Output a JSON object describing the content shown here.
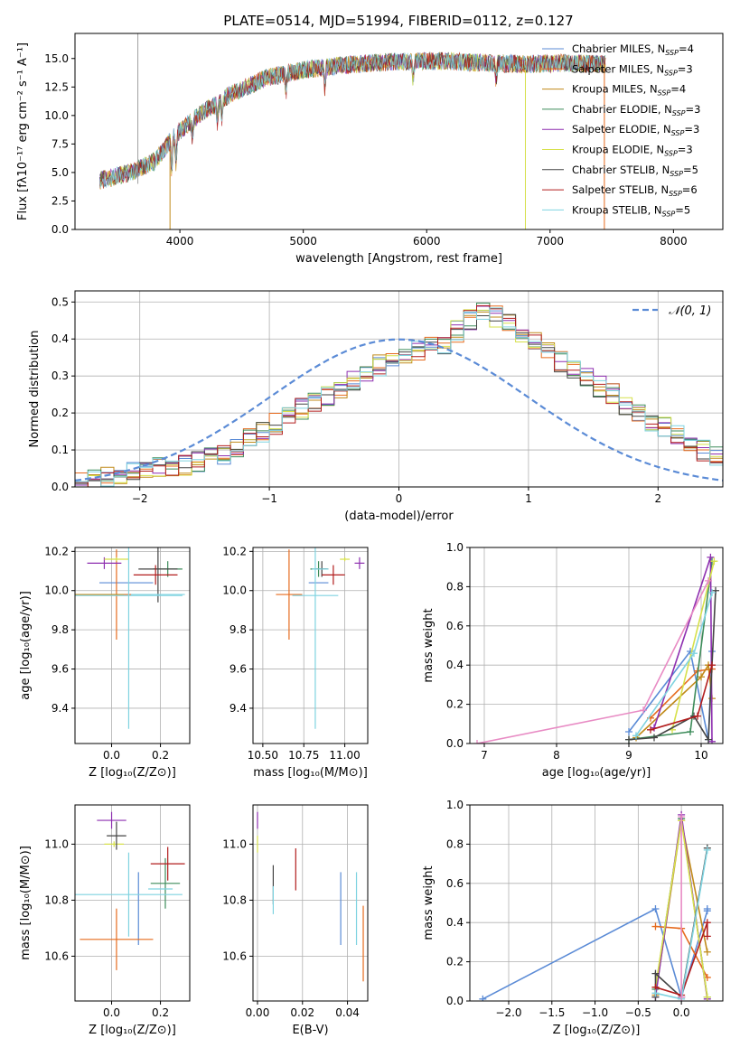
{
  "figure_title": "PLATE=0514, MJD=51994, FIBERID=0112, z=0.127",
  "colors": {
    "grid": "#b0b0b0",
    "normal_curve": "#5b8bd6"
  },
  "series": [
    {
      "legend": "Chabrier MILES, N",
      "legend_sub": "SSP",
      "legend_tail": "=4",
      "n_ssp": 4,
      "color": "#5b8bd6"
    },
    {
      "legend": "Salpeter MILES, N",
      "legend_sub": "SSP",
      "legend_tail": "=3",
      "n_ssp": 3,
      "color": "#e66b1e"
    },
    {
      "legend": "Kroupa MILES, N",
      "legend_sub": "SSP",
      "legend_tail": "=4",
      "n_ssp": 4,
      "color": "#c08a1a"
    },
    {
      "legend": "Chabrier ELODIE, N",
      "legend_sub": "SSP",
      "legend_tail": "=3",
      "n_ssp": 3,
      "color": "#3d8c5a"
    },
    {
      "legend": "Salpeter ELODIE, N",
      "legend_sub": "SSP",
      "legend_tail": "=3",
      "n_ssp": 3,
      "color": "#8e2fb0"
    },
    {
      "legend": "Kroupa ELODIE, N",
      "legend_sub": "SSP",
      "legend_tail": "=3",
      "n_ssp": 3,
      "color": "#d6e04a"
    },
    {
      "legend": "Chabrier STELIB, N",
      "legend_sub": "SSP",
      "legend_tail": "=5",
      "n_ssp": 5,
      "color": "#444444"
    },
    {
      "legend": "Salpeter STELIB, N",
      "legend_sub": "SSP",
      "legend_tail": "=6",
      "n_ssp": 6,
      "color": "#b21d1d"
    },
    {
      "legend": "Kroupa STELIB, N",
      "legend_sub": "SSP",
      "legend_tail": "=5",
      "n_ssp": 5,
      "color": "#7fd3e0"
    }
  ],
  "chart_data": [
    {
      "id": "spectrum",
      "type": "line",
      "title": "PLATE=0514, MJD=51994, FIBERID=0112, z=0.127",
      "xlabel": "wavelength [Angstrom, rest frame]",
      "ylabel": "Flux [fλ10⁻¹⁷ erg cm⁻² s⁻¹ A⁻¹]",
      "xlim": [
        3150,
        8400
      ],
      "ylim": [
        0,
        17.2
      ],
      "xticks": [
        4000,
        5000,
        6000,
        7000,
        8000
      ],
      "yticks": [
        0.0,
        2.5,
        5.0,
        7.5,
        10.0,
        12.5,
        15.0
      ],
      "grid": false,
      "legend_position": "top-right",
      "continuum": [
        [
          3350,
          4.3
        ],
        [
          3600,
          5.0
        ],
        [
          3800,
          6.0
        ],
        [
          3950,
          8.2
        ],
        [
          4150,
          10.0
        ],
        [
          4400,
          11.8
        ],
        [
          4700,
          13.3
        ],
        [
          5000,
          14.0
        ],
        [
          5300,
          14.4
        ],
        [
          5700,
          14.7
        ],
        [
          6100,
          14.8
        ],
        [
          6500,
          14.6
        ],
        [
          6800,
          14.5
        ],
        [
          7100,
          14.6
        ],
        [
          7400,
          14.5
        ]
      ],
      "data_xrange": [
        3350,
        7450
      ]
    },
    {
      "id": "residuals",
      "type": "bar",
      "xlabel": "(data-model)/error",
      "ylabel": "Normed distribution",
      "xlim": [
        -2.5,
        2.5
      ],
      "ylim": [
        0,
        0.53
      ],
      "xticks": [
        -2,
        -1,
        0,
        1,
        2
      ],
      "yticks": [
        0.0,
        0.1,
        0.2,
        0.3,
        0.4,
        0.5
      ],
      "grid": true,
      "legend_label": "𝒩(0, 1)",
      "legend_position": "top-right",
      "bin_width": 0.1,
      "bin_start": -2.5,
      "base_counts": [
        0.02,
        0.02,
        0.03,
        0.035,
        0.04,
        0.045,
        0.05,
        0.055,
        0.06,
        0.07,
        0.08,
        0.09,
        0.11,
        0.13,
        0.15,
        0.17,
        0.19,
        0.21,
        0.23,
        0.25,
        0.27,
        0.29,
        0.31,
        0.33,
        0.35,
        0.36,
        0.37,
        0.38,
        0.39,
        0.42,
        0.45,
        0.47,
        0.46,
        0.44,
        0.42,
        0.4,
        0.37,
        0.34,
        0.32,
        0.3,
        0.27,
        0.25,
        0.22,
        0.2,
        0.18,
        0.16,
        0.14,
        0.12,
        0.1,
        0.08,
        0.07,
        0.06,
        0.05,
        0.04,
        0.035,
        0.03,
        0.025,
        0.02,
        0.02,
        0.02
      ]
    },
    {
      "id": "age-vs-z",
      "type": "scatter",
      "xlabel": "Z [log₁₀(Z/Z⊙)]",
      "ylabel": "age  [log₁₀(age/yr)]",
      "xlim": [
        -0.15,
        0.32
      ],
      "ylim": [
        9.22,
        10.22
      ],
      "xticks": [
        0.0,
        0.2
      ],
      "yticks": [
        9.4,
        9.6,
        9.8,
        10.0,
        10.2
      ],
      "grid": true,
      "points": [
        {
          "series": 0,
          "x": 0.06,
          "xerr": 0.11,
          "y": 10.04,
          "yerr": 0.0
        },
        {
          "series": 1,
          "x": 0.02,
          "xerr": 0.15,
          "y": 9.98,
          "yerr": 0.23
        },
        {
          "series": 2,
          "x": -0.05,
          "xerr": 0.1,
          "y": 9.98,
          "yerr": 0.0
        },
        {
          "series": 3,
          "x": 0.23,
          "xerr": 0.06,
          "y": 10.11,
          "yerr": 0.04
        },
        {
          "series": 4,
          "x": -0.03,
          "xerr": 0.07,
          "y": 10.14,
          "yerr": 0.03
        },
        {
          "series": 5,
          "x": 0.02,
          "xerr": 0.05,
          "y": 10.16,
          "yerr": 0.01
        },
        {
          "series": 6,
          "x": 0.19,
          "xerr": 0.08,
          "y": 10.11,
          "yerr": 0.17
        },
        {
          "series": 7,
          "x": 0.18,
          "xerr": 0.09,
          "y": 10.08,
          "yerr": 0.05
        },
        {
          "series": 8,
          "x": 0.19,
          "xerr": 0.11,
          "y": 9.98,
          "yerr": 0.0
        },
        {
          "series": 9,
          "x": 0.07,
          "xerr": 0.22,
          "y": 9.975,
          "yerr": 0.68
        }
      ]
    },
    {
      "id": "age-vs-mass",
      "type": "scatter",
      "xlabel": "mass [log₁₀(M/M⊙)]",
      "ylabel": "",
      "xlim": [
        10.44,
        11.14
      ],
      "ylim": [
        9.22,
        10.22
      ],
      "xticks": [
        10.5,
        10.75,
        11.0
      ],
      "yticks": [
        9.4,
        9.6,
        9.8,
        10.0,
        10.2
      ],
      "grid": true,
      "points": [
        {
          "series": 0,
          "x": 10.84,
          "xerr": 0.06,
          "y": 10.04,
          "yerr": 0.0
        },
        {
          "series": 1,
          "x": 10.66,
          "xerr": 0.08,
          "y": 9.98,
          "yerr": 0.23
        },
        {
          "series": 3,
          "x": 10.84,
          "xerr": 0.05,
          "y": 10.11,
          "yerr": 0.04
        },
        {
          "series": 4,
          "x": 11.09,
          "xerr": 0.03,
          "y": 10.14,
          "yerr": 0.03
        },
        {
          "series": 5,
          "x": 11.0,
          "xerr": 0.03,
          "y": 10.16,
          "yerr": 0.01
        },
        {
          "series": 6,
          "x": 10.86,
          "xerr": 0.04,
          "y": 10.11,
          "yerr": 0.04
        },
        {
          "series": 7,
          "x": 10.93,
          "xerr": 0.07,
          "y": 10.08,
          "yerr": 0.05
        },
        {
          "series": 8,
          "x": 10.85,
          "xerr": 0.05,
          "y": 10.11,
          "yerr": 0.0
        },
        {
          "series": 9,
          "x": 10.82,
          "xerr": 0.14,
          "y": 9.975,
          "yerr": 0.68
        }
      ]
    },
    {
      "id": "massweight-vs-age",
      "type": "line",
      "xlabel": "age  [log₁₀(age/yr)]",
      "ylabel": "mass weight",
      "xlim": [
        6.8,
        10.3
      ],
      "ylim": [
        0,
        1.0
      ],
      "xticks": [
        7,
        8,
        9,
        10
      ],
      "yticks": [
        0.0,
        0.2,
        0.4,
        0.6,
        0.8,
        1.0
      ],
      "grid": true,
      "lines": [
        {
          "series": 0,
          "x": [
            9.0,
            9.85,
            10.1,
            10.15
          ],
          "y": [
            0.06,
            0.47,
            0.02,
            0.47
          ]
        },
        {
          "series": 1,
          "x": [
            9.3,
            9.95,
            10.15
          ],
          "y": [
            0.13,
            0.37,
            0.38
          ]
        },
        {
          "series": 2,
          "x": [
            9.1,
            10.0,
            10.1,
            10.15
          ],
          "y": [
            0.03,
            0.34,
            0.4,
            0.23
          ]
        },
        {
          "series": 3,
          "x": [
            9.0,
            9.85,
            10.15
          ],
          "y": [
            0.02,
            0.06,
            0.93
          ]
        },
        {
          "series": 4,
          "x": [
            9.35,
            10.13,
            10.15
          ],
          "y": [
            0.08,
            0.95,
            0.01
          ]
        },
        {
          "series": 5,
          "x": [
            9.6,
            10.18
          ],
          "y": [
            0.07,
            0.93
          ]
        },
        {
          "series": 6,
          "x": [
            9.0,
            9.35,
            9.9,
            10.1,
            10.2
          ],
          "y": [
            0.02,
            0.03,
            0.14,
            0.02,
            0.78
          ]
        },
        {
          "series": 7,
          "x": [
            9.3,
            9.95,
            10.15
          ],
          "y": [
            0.07,
            0.14,
            0.4
          ]
        },
        {
          "series": 8,
          "x": [
            9.1,
            9.9,
            10.15
          ],
          "y": [
            0.04,
            0.46,
            0.77
          ]
        },
        {
          "series": 9,
          "x": [
            6.9,
            9.2,
            10.1
          ],
          "y": [
            0.0,
            0.17,
            0.83
          ]
        }
      ]
    },
    {
      "id": "mass-vs-z",
      "type": "scatter",
      "xlabel": "Z [log₁₀(Z/Z⊙)]",
      "ylabel": "mass [log₁₀(M/M⊙)]",
      "xlim": [
        -0.15,
        0.32
      ],
      "ylim": [
        10.44,
        11.14
      ],
      "xticks": [
        0.0,
        0.2
      ],
      "yticks": [
        10.6,
        10.8,
        11.0
      ],
      "grid": true,
      "points": [
        {
          "series": 0,
          "x": 0.11,
          "xerr": 0.0,
          "y": 10.77,
          "yerr": 0.13
        },
        {
          "series": 1,
          "x": 0.02,
          "xerr": 0.15,
          "y": 10.66,
          "yerr": 0.11
        },
        {
          "series": 3,
          "x": 0.22,
          "xerr": 0.06,
          "y": 10.86,
          "yerr": 0.09
        },
        {
          "series": 4,
          "x": 0.0,
          "xerr": 0.06,
          "y": 11.085,
          "yerr": 0.03
        },
        {
          "series": 5,
          "x": 0.01,
          "xerr": 0.04,
          "y": 11.0,
          "yerr": 0.01
        },
        {
          "series": 6,
          "x": 0.02,
          "xerr": 0.04,
          "y": 11.03,
          "yerr": 0.05
        },
        {
          "series": 7,
          "x": 0.23,
          "xerr": 0.07,
          "y": 10.93,
          "yerr": 0.06
        },
        {
          "series": 8,
          "x": 0.2,
          "xerr": 0.05,
          "y": 10.84,
          "yerr": 0.0
        },
        {
          "series": 9,
          "x": 0.07,
          "xerr": 0.22,
          "y": 10.82,
          "yerr": 0.15
        }
      ]
    },
    {
      "id": "mass-vs-ebv",
      "type": "scatter",
      "xlabel": "E(B-V)",
      "ylabel": "",
      "xlim": [
        -0.002,
        0.049
      ],
      "ylim": [
        10.44,
        11.14
      ],
      "xticks": [
        0.0,
        0.02,
        0.04
      ],
      "yticks": [
        10.6,
        10.8,
        11.0
      ],
      "grid": true,
      "points": [
        {
          "series": 0,
          "x": 0.037,
          "xerr": 0.0,
          "y": 10.77,
          "yerr": 0.13
        },
        {
          "series": 1,
          "x": 0.047,
          "xerr": 0.0,
          "y": 10.645,
          "yerr": 0.135
        },
        {
          "series": 4,
          "x": 0.0,
          "xerr": 0.0,
          "y": 11.085,
          "yerr": 0.03
        },
        {
          "series": 5,
          "x": 0.0,
          "xerr": 0.0,
          "y": 11.0,
          "yerr": 0.03
        },
        {
          "series": 6,
          "x": 0.007,
          "xerr": 0.0,
          "y": 10.855,
          "yerr": 0.07
        },
        {
          "series": 7,
          "x": 0.017,
          "xerr": 0.0,
          "y": 10.91,
          "yerr": 0.075
        },
        {
          "series": 8,
          "x": 0.007,
          "xerr": 0.0,
          "y": 10.8,
          "yerr": 0.05
        },
        {
          "series": 9,
          "x": 0.044,
          "xerr": 0.0,
          "y": 10.77,
          "yerr": 0.13
        }
      ]
    },
    {
      "id": "massweight-vs-z",
      "type": "line",
      "xlabel": "Z [log₁₀(Z/Z⊙)]",
      "ylabel": "mass weight",
      "xlim": [
        -2.45,
        0.48
      ],
      "ylim": [
        0,
        1.0
      ],
      "xticks": [
        -2.0,
        -1.5,
        -1.0,
        -0.5,
        0.0
      ],
      "yticks": [
        0.0,
        0.2,
        0.4,
        0.6,
        0.8,
        1.0
      ],
      "grid": true,
      "lines": [
        {
          "series": 0,
          "x": [
            -2.3,
            -0.3,
            0.0,
            0.3,
            0.3
          ],
          "y": [
            0.01,
            0.47,
            0.02,
            0.46,
            0.47
          ]
        },
        {
          "series": 1,
          "x": [
            -0.3,
            0.0,
            0.3
          ],
          "y": [
            0.38,
            0.37,
            0.12
          ]
        },
        {
          "series": 2,
          "x": [
            -0.3,
            0.0,
            0.3
          ],
          "y": [
            0.03,
            0.92,
            0.25
          ]
        },
        {
          "series": 3,
          "x": [
            -0.3,
            0.0,
            0.3
          ],
          "y": [
            0.06,
            0.93,
            0.02
          ]
        },
        {
          "series": 4,
          "x": [
            -0.3,
            0.0,
            0.3
          ],
          "y": [
            0.02,
            0.95,
            0.01
          ]
        },
        {
          "series": 5,
          "x": [
            -0.3,
            0.0,
            0.3
          ],
          "y": [
            0.07,
            0.92,
            0.02
          ]
        },
        {
          "series": 6,
          "x": [
            -0.3,
            -0.3,
            0.0,
            0.3
          ],
          "y": [
            0.02,
            0.14,
            0.02,
            0.78
          ]
        },
        {
          "series": 7,
          "x": [
            -0.3,
            0.0,
            0.3,
            0.3
          ],
          "y": [
            0.07,
            0.03,
            0.4,
            0.33
          ]
        },
        {
          "series": 8,
          "x": [
            -0.3,
            0.0,
            0.3
          ],
          "y": [
            0.04,
            0.01,
            0.77
          ]
        },
        {
          "series": 9,
          "x": [
            0.0,
            0.0
          ],
          "y": [
            0.02,
            0.94
          ]
        }
      ]
    }
  ]
}
